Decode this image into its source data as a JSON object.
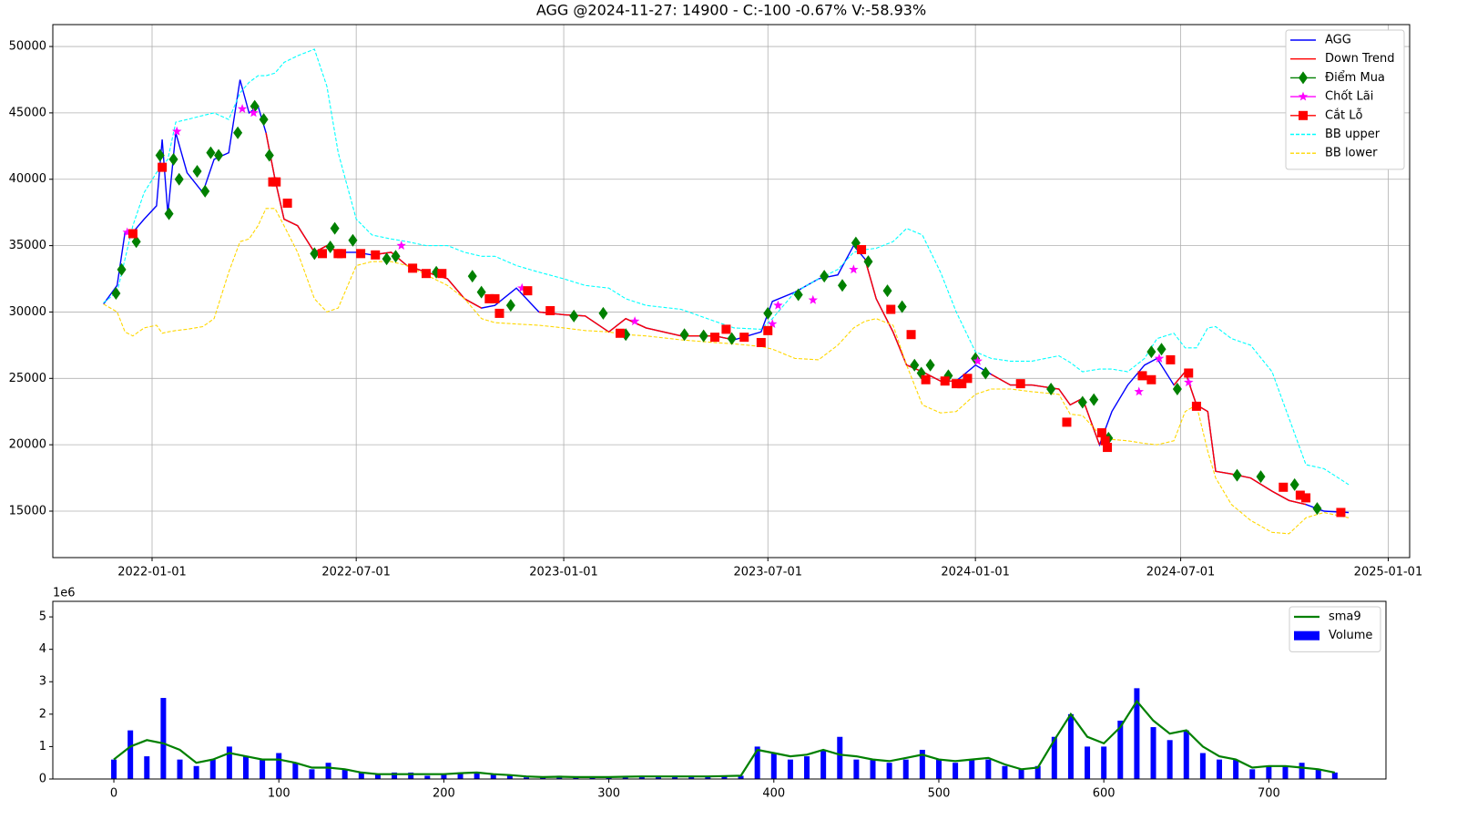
{
  "chart_data": [
    {
      "type": "line",
      "title": "AGG @2024-11-27: 14900 - C:-100 -0.67% V:-58.93%",
      "x": [
        "2021-11-19",
        "2021-12-01",
        "2021-12-08",
        "2021-12-15",
        "2021-12-25",
        "2022-01-05",
        "2022-01-10",
        "2022-01-15",
        "2022-01-22",
        "2022-02-01",
        "2022-02-15",
        "2022-02-25",
        "2022-03-10",
        "2022-03-20",
        "2022-03-28",
        "2022-04-05",
        "2022-04-12",
        "2022-04-20",
        "2022-04-28",
        "2022-05-10",
        "2022-05-25",
        "2022-06-05",
        "2022-06-15",
        "2022-07-01",
        "2022-07-15",
        "2022-08-01",
        "2022-08-15",
        "2022-09-01",
        "2022-09-20",
        "2022-10-05",
        "2022-10-20",
        "2022-11-01",
        "2022-11-20",
        "2022-12-10",
        "2023-01-01",
        "2023-01-20",
        "2023-02-10",
        "2023-02-25",
        "2023-03-15",
        "2023-04-15",
        "2023-05-15",
        "2023-06-01",
        "2023-06-25",
        "2023-07-05",
        "2023-07-25",
        "2023-08-15",
        "2023-09-01",
        "2023-09-15",
        "2023-09-25",
        "2023-10-05",
        "2023-10-20",
        "2023-11-01",
        "2023-11-15",
        "2023-12-01",
        "2023-12-15",
        "2024-01-01",
        "2024-01-15",
        "2024-02-01",
        "2024-02-20",
        "2024-03-15",
        "2024-03-25",
        "2024-04-05",
        "2024-04-20",
        "2024-05-01",
        "2024-05-15",
        "2024-05-30",
        "2024-06-10",
        "2024-06-25",
        "2024-07-05",
        "2024-07-15",
        "2024-07-25",
        "2024-08-01",
        "2024-08-15",
        "2024-09-01",
        "2024-09-20",
        "2024-10-05",
        "2024-10-20",
        "2024-11-05",
        "2024-11-27"
      ],
      "series": [
        {
          "name": "AGG",
          "color": "#0000ff",
          "style": "solid",
          "values": [
            30600,
            32000,
            36000,
            36000,
            37000,
            38000,
            43000,
            37400,
            43500,
            40500,
            39000,
            41500,
            42000,
            47500,
            45000,
            45500,
            43500,
            40000,
            37000,
            36500,
            34500,
            35000,
            34500,
            34500,
            34300,
            34500,
            33500,
            33000,
            32500,
            31000,
            30300,
            30500,
            31800,
            30000,
            29800,
            29700,
            28500,
            29500,
            28800,
            28200,
            28200,
            27900,
            28500,
            30800,
            31500,
            32500,
            32800,
            35000,
            34000,
            31000,
            28500,
            26000,
            25500,
            24800,
            24800,
            26000,
            25300,
            24500,
            24500,
            24200,
            23000,
            23500,
            20000,
            22500,
            24500,
            26000,
            26500,
            24500,
            25500,
            23000,
            22500,
            18000,
            17800,
            17500,
            16500,
            15800,
            15500,
            15000,
            14900
          ]
        },
        {
          "name": "Down Trend",
          "color": "#ff0000",
          "style": "solid",
          "values": [
            null,
            null,
            null,
            null,
            null,
            null,
            null,
            null,
            null,
            null,
            null,
            null,
            null,
            null,
            null,
            null,
            43500,
            40000,
            37000,
            36500,
            34500,
            35000,
            34500,
            null,
            34300,
            34500,
            33500,
            33000,
            32500,
            31000,
            30300,
            null,
            null,
            30000,
            29800,
            29700,
            28500,
            29500,
            28800,
            28200,
            28200,
            27900,
            null,
            null,
            null,
            null,
            null,
            null,
            34000,
            31000,
            28500,
            26000,
            25500,
            24800,
            24800,
            null,
            25300,
            24500,
            24500,
            24200,
            23000,
            23500,
            20000,
            null,
            null,
            null,
            null,
            24500,
            25500,
            23000,
            22500,
            18000,
            17800,
            17500,
            16500,
            15800,
            15500,
            null,
            null
          ]
        },
        {
          "name": "Điểm Mua",
          "color": "#008000",
          "marker": "diamond",
          "x": [
            "2021-11-30",
            "2021-12-05",
            "2021-12-18",
            "2022-01-08",
            "2022-01-16",
            "2022-01-20",
            "2022-01-25",
            "2022-02-10",
            "2022-02-17",
            "2022-02-22",
            "2022-03-01",
            "2022-03-18",
            "2022-04-02",
            "2022-04-10",
            "2022-04-15",
            "2022-05-25",
            "2022-06-08",
            "2022-06-12",
            "2022-06-28",
            "2022-07-28",
            "2022-08-05",
            "2022-09-10",
            "2022-10-12",
            "2022-10-20",
            "2022-11-15",
            "2023-01-10",
            "2023-02-05",
            "2023-02-25",
            "2023-04-18",
            "2023-05-05",
            "2023-05-30",
            "2023-07-01",
            "2023-07-28",
            "2023-08-20",
            "2023-09-05",
            "2023-09-17",
            "2023-09-28",
            "2023-10-15",
            "2023-10-28",
            "2023-11-08",
            "2023-11-14",
            "2023-11-22",
            "2023-12-08",
            "2024-01-01",
            "2024-01-10",
            "2024-03-08",
            "2024-04-05",
            "2024-04-15",
            "2024-04-28",
            "2024-06-05",
            "2024-06-14",
            "2024-06-28",
            "2024-08-20",
            "2024-09-10",
            "2024-10-10",
            "2024-10-30"
          ],
          "values": [
            31400,
            33200,
            35300,
            41800,
            37400,
            41500,
            40000,
            40600,
            39100,
            42000,
            41800,
            43500,
            45500,
            44500,
            41800,
            34400,
            34900,
            36300,
            35400,
            34000,
            34200,
            33000,
            32700,
            31500,
            30500,
            29700,
            29900,
            28300,
            28300,
            28200,
            28000,
            29900,
            31300,
            32700,
            32000,
            35200,
            33800,
            31600,
            30400,
            26000,
            25400,
            26000,
            25200,
            26500,
            25400,
            24200,
            23200,
            23400,
            20500,
            27000,
            27200,
            24200,
            17700,
            17600,
            17000,
            15200
          ]
        },
        {
          "name": "Chốt Lãi",
          "color": "#ff00ff",
          "marker": "star",
          "x": [
            "2021-12-10",
            "2022-01-23",
            "2022-03-22",
            "2022-04-01",
            "2022-08-10",
            "2022-11-25",
            "2023-03-05",
            "2023-07-05",
            "2023-07-10",
            "2023-08-10",
            "2023-09-15",
            "2024-01-03",
            "2024-05-25",
            "2024-06-12",
            "2024-07-08"
          ],
          "values": [
            36000,
            43600,
            45300,
            45000,
            35000,
            31800,
            29300,
            29100,
            30500,
            30900,
            33200,
            26300,
            24000,
            26500,
            24700
          ]
        },
        {
          "name": "Cắt Lỗ",
          "color": "#ff0000",
          "marker": "square",
          "x": [
            "2021-12-15",
            "2022-01-10",
            "2022-04-18",
            "2022-04-21",
            "2022-05-01",
            "2022-06-01",
            "2022-06-15",
            "2022-06-18",
            "2022-07-05",
            "2022-07-18",
            "2022-08-20",
            "2022-09-01",
            "2022-09-15",
            "2022-10-27",
            "2022-11-01",
            "2022-11-05",
            "2022-11-30",
            "2022-12-20",
            "2023-02-20",
            "2023-05-15",
            "2023-05-25",
            "2023-06-10",
            "2023-06-25",
            "2023-07-01",
            "2023-09-22",
            "2023-10-18",
            "2023-11-05",
            "2023-11-18",
            "2023-12-05",
            "2023-12-15",
            "2023-12-20",
            "2023-12-25",
            "2024-02-10",
            "2024-03-22",
            "2024-04-22",
            "2024-04-25",
            "2024-04-27",
            "2024-05-28",
            "2024-06-05",
            "2024-06-22",
            "2024-07-08",
            "2024-07-15",
            "2024-09-30",
            "2024-10-15",
            "2024-10-20",
            "2024-11-20"
          ],
          "values": [
            35900,
            40900,
            39800,
            39800,
            38200,
            34400,
            34400,
            34400,
            34400,
            34300,
            33300,
            32900,
            32900,
            31000,
            31000,
            29900,
            31600,
            30100,
            28400,
            28100,
            28700,
            28100,
            27700,
            28600,
            34700,
            30200,
            28300,
            24900,
            24800,
            24600,
            24600,
            25000,
            24600,
            21700,
            20900,
            20300,
            19800,
            25200,
            24900,
            26400,
            25400,
            22900,
            16800,
            16200,
            16000,
            14900
          ]
        },
        {
          "name": "BB upper",
          "color": "#00ffff",
          "style": "dashed",
          "values": [
            30700,
            31500,
            34000,
            36500,
            39000,
            40500,
            41000,
            41500,
            44300,
            44500,
            44800,
            45000,
            44500,
            46500,
            47300,
            47800,
            47800,
            48000,
            48800,
            49300,
            49800,
            47000,
            42000,
            37000,
            35800,
            35500,
            35300,
            35000,
            35000,
            34500,
            34200,
            34200,
            33500,
            33000,
            32500,
            32000,
            31800,
            31000,
            30500,
            30200,
            29300,
            28800,
            28700,
            29500,
            31500,
            32500,
            33200,
            34500,
            34700,
            34800,
            35300,
            36300,
            35800,
            33000,
            30000,
            27000,
            26500,
            26300,
            26300,
            26700,
            26200,
            25500,
            25700,
            25700,
            25500,
            26500,
            28000,
            28400,
            27300,
            27300,
            28800,
            28900,
            28000,
            27500,
            25500,
            22000,
            18500,
            18200,
            17000
          ]
        },
        {
          "name": "BB lower",
          "color": "#ffd700",
          "style": "dashed",
          "values": [
            30600,
            30000,
            28500,
            28200,
            28800,
            29000,
            28400,
            28500,
            28600,
            28700,
            28900,
            29500,
            33000,
            35300,
            35500,
            36500,
            37800,
            37800,
            36500,
            34500,
            31000,
            30000,
            30300,
            33500,
            33800,
            33800,
            33500,
            32800,
            32000,
            31000,
            29500,
            29200,
            29100,
            29000,
            28800,
            28600,
            28500,
            28300,
            28200,
            27900,
            27700,
            27600,
            27400,
            27200,
            26500,
            26400,
            27500,
            28800,
            29300,
            29500,
            29000,
            26000,
            23000,
            22400,
            22500,
            23800,
            24200,
            24200,
            24000,
            23800,
            22300,
            22200,
            20800,
            20400,
            20300,
            20100,
            20000,
            20300,
            22500,
            23000,
            19500,
            17500,
            15500,
            14300,
            13400,
            13300,
            14500,
            14900,
            14500
          ]
        }
      ],
      "xlim": [
        "2021-10-05",
        "2025-01-20"
      ],
      "xticks": [
        "2022-01-01",
        "2022-07-01",
        "2023-01-01",
        "2023-07-01",
        "2024-01-01",
        "2024-07-01",
        "2025-01-01"
      ],
      "ylim": [
        11500,
        51650
      ],
      "yticks": [
        15000,
        20000,
        25000,
        30000,
        35000,
        40000,
        45000,
        50000
      ],
      "grid": true,
      "legend": "upper right"
    },
    {
      "type": "bar",
      "y_offset_label": "1e6",
      "x": [
        0,
        10,
        20,
        30,
        40,
        50,
        60,
        70,
        80,
        90,
        100,
        110,
        120,
        130,
        140,
        150,
        160,
        170,
        180,
        190,
        200,
        210,
        220,
        230,
        240,
        250,
        260,
        270,
        280,
        290,
        300,
        310,
        320,
        330,
        340,
        350,
        360,
        370,
        380,
        390,
        400,
        410,
        420,
        430,
        440,
        450,
        460,
        470,
        480,
        490,
        500,
        510,
        520,
        530,
        540,
        550,
        560,
        570,
        580,
        590,
        600,
        610,
        620,
        630,
        640,
        650,
        660,
        670,
        680,
        690,
        700,
        710,
        720,
        730,
        740
      ],
      "series": [
        {
          "name": "sma9",
          "color": "#008000",
          "type": "line",
          "values": [
            600000,
            1000000,
            1200000,
            1100000,
            900000,
            500000,
            600000,
            800000,
            700000,
            600000,
            600000,
            500000,
            350000,
            350000,
            300000,
            200000,
            150000,
            150000,
            150000,
            150000,
            150000,
            180000,
            200000,
            150000,
            120000,
            80000,
            60000,
            70000,
            60000,
            60000,
            60000,
            70000,
            80000,
            80000,
            80000,
            80000,
            80000,
            90000,
            100000,
            900000,
            800000,
            700000,
            750000,
            900000,
            750000,
            700000,
            600000,
            550000,
            650000,
            750000,
            600000,
            550000,
            600000,
            650000,
            450000,
            300000,
            350000,
            1200000,
            2000000,
            1300000,
            1100000,
            1600000,
            2400000,
            1800000,
            1400000,
            1500000,
            1000000,
            700000,
            600000,
            350000,
            400000,
            400000,
            350000,
            300000,
            200000
          ]
        },
        {
          "name": "Volume",
          "color": "#0000ff",
          "type": "bar",
          "values": [
            600000,
            1500000,
            700000,
            2500000,
            600000,
            400000,
            600000,
            1000000,
            700000,
            600000,
            800000,
            500000,
            300000,
            500000,
            300000,
            200000,
            150000,
            200000,
            200000,
            100000,
            150000,
            200000,
            200000,
            150000,
            100000,
            50000,
            50000,
            100000,
            50000,
            50000,
            50000,
            50000,
            80000,
            80000,
            80000,
            80000,
            80000,
            100000,
            100000,
            1000000,
            800000,
            600000,
            700000,
            900000,
            1300000,
            600000,
            600000,
            500000,
            600000,
            900000,
            600000,
            500000,
            600000,
            600000,
            400000,
            300000,
            400000,
            1300000,
            2000000,
            1000000,
            1000000,
            1800000,
            2800000,
            1600000,
            1200000,
            1500000,
            800000,
            600000,
            600000,
            300000,
            400000,
            400000,
            500000,
            300000,
            200000
          ]
        }
      ],
      "xlim": [
        -37,
        771
      ],
      "xticks": [
        0,
        100,
        200,
        300,
        400,
        500,
        600,
        700
      ],
      "ylim": [
        0,
        5480000
      ],
      "yticks": [
        0,
        {
          "value": 1000000,
          "label": "1"
        },
        {
          "value": 2000000,
          "label": "2"
        },
        {
          "value": 3000000,
          "label": "3"
        },
        {
          "value": 4000000,
          "label": "4"
        },
        {
          "value": 5000000,
          "label": "5"
        }
      ],
      "grid": false,
      "legend": "upper right"
    }
  ]
}
